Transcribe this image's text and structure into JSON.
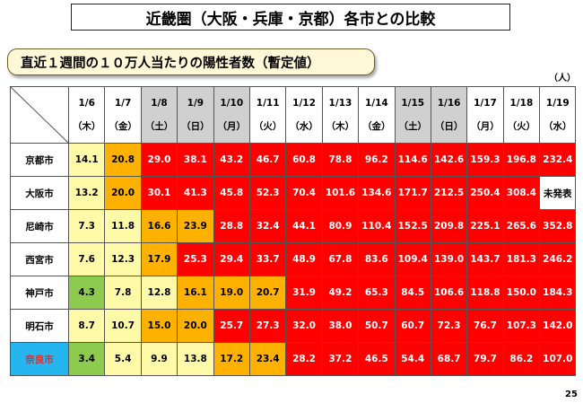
{
  "title": "近畿圏（大阪・兵庫・京都）各市との比較",
  "subtitle": "直近１週間の１０万人当たりの陽性者数（暫定値）",
  "unit": "（人）",
  "page_number": "25",
  "colors": {
    "green": "#8ccb4e",
    "yellow": "#fffaa8",
    "orange": "#ffb100",
    "red": "#fe0000",
    "nara_highlight": "#25b5ef",
    "weekend_header": "#d0d0d0"
  },
  "table": {
    "columns": [
      {
        "date": "1/6",
        "day": "（木）",
        "weekend": false
      },
      {
        "date": "1/7",
        "day": "（金）",
        "weekend": false
      },
      {
        "date": "1/8",
        "day": "（土）",
        "weekend": true
      },
      {
        "date": "1/9",
        "day": "（日）",
        "weekend": true
      },
      {
        "date": "1/10",
        "day": "（月）",
        "weekend": true
      },
      {
        "date": "1/11",
        "day": "（火）",
        "weekend": false
      },
      {
        "date": "1/12",
        "day": "（水）",
        "weekend": false
      },
      {
        "date": "1/13",
        "day": "（木）",
        "weekend": false
      },
      {
        "date": "1/14",
        "day": "（金）",
        "weekend": false
      },
      {
        "date": "1/15",
        "day": "（土）",
        "weekend": true
      },
      {
        "date": "1/16",
        "day": "（日）",
        "weekend": true
      },
      {
        "date": "1/17",
        "day": "（月）",
        "weekend": false
      },
      {
        "date": "1/18",
        "day": "（火）",
        "weekend": false
      },
      {
        "date": "1/19",
        "day": "（水）",
        "weekend": false
      }
    ],
    "rows": [
      {
        "city": "京都市",
        "highlight": false,
        "cells": [
          {
            "v": "14.1",
            "c": "yellow"
          },
          {
            "v": "20.8",
            "c": "orange"
          },
          {
            "v": "29.0",
            "c": "red"
          },
          {
            "v": "38.1",
            "c": "red"
          },
          {
            "v": "43.2",
            "c": "red"
          },
          {
            "v": "46.7",
            "c": "red"
          },
          {
            "v": "60.8",
            "c": "red"
          },
          {
            "v": "78.8",
            "c": "red"
          },
          {
            "v": "96.2",
            "c": "red"
          },
          {
            "v": "114.6",
            "c": "red"
          },
          {
            "v": "142.6",
            "c": "red"
          },
          {
            "v": "159.3",
            "c": "red"
          },
          {
            "v": "196.8",
            "c": "red"
          },
          {
            "v": "232.4",
            "c": "red"
          }
        ]
      },
      {
        "city": "大阪市",
        "highlight": false,
        "cells": [
          {
            "v": "13.2",
            "c": "yellow"
          },
          {
            "v": "20.0",
            "c": "orange"
          },
          {
            "v": "30.1",
            "c": "red"
          },
          {
            "v": "41.3",
            "c": "red"
          },
          {
            "v": "45.8",
            "c": "red"
          },
          {
            "v": "52.3",
            "c": "red"
          },
          {
            "v": "70.4",
            "c": "red"
          },
          {
            "v": "101.6",
            "c": "red"
          },
          {
            "v": "134.6",
            "c": "red"
          },
          {
            "v": "171.7",
            "c": "red"
          },
          {
            "v": "212.5",
            "c": "red"
          },
          {
            "v": "250.4",
            "c": "red"
          },
          {
            "v": "308.4",
            "c": "red"
          },
          {
            "v": "未発表",
            "c": "white"
          }
        ]
      },
      {
        "city": "尼崎市",
        "highlight": false,
        "cells": [
          {
            "v": "7.3",
            "c": "yellow"
          },
          {
            "v": "11.8",
            "c": "yellow"
          },
          {
            "v": "16.6",
            "c": "orange"
          },
          {
            "v": "23.9",
            "c": "orange"
          },
          {
            "v": "28.8",
            "c": "red"
          },
          {
            "v": "32.4",
            "c": "red"
          },
          {
            "v": "44.1",
            "c": "red"
          },
          {
            "v": "80.9",
            "c": "red"
          },
          {
            "v": "110.4",
            "c": "red"
          },
          {
            "v": "152.5",
            "c": "red"
          },
          {
            "v": "209.8",
            "c": "red"
          },
          {
            "v": "225.1",
            "c": "red"
          },
          {
            "v": "265.6",
            "c": "red"
          },
          {
            "v": "352.8",
            "c": "red"
          }
        ]
      },
      {
        "city": "西宮市",
        "highlight": false,
        "cells": [
          {
            "v": "7.6",
            "c": "yellow"
          },
          {
            "v": "12.3",
            "c": "yellow"
          },
          {
            "v": "17.9",
            "c": "orange"
          },
          {
            "v": "25.3",
            "c": "red"
          },
          {
            "v": "29.4",
            "c": "red"
          },
          {
            "v": "33.7",
            "c": "red"
          },
          {
            "v": "48.9",
            "c": "red"
          },
          {
            "v": "67.8",
            "c": "red"
          },
          {
            "v": "83.6",
            "c": "red"
          },
          {
            "v": "109.4",
            "c": "red"
          },
          {
            "v": "139.0",
            "c": "red"
          },
          {
            "v": "143.7",
            "c": "red"
          },
          {
            "v": "181.3",
            "c": "red"
          },
          {
            "v": "246.2",
            "c": "red"
          }
        ]
      },
      {
        "city": "神戸市",
        "highlight": false,
        "cells": [
          {
            "v": "4.3",
            "c": "green"
          },
          {
            "v": "7.8",
            "c": "yellow"
          },
          {
            "v": "12.8",
            "c": "yellow"
          },
          {
            "v": "16.1",
            "c": "orange"
          },
          {
            "v": "19.0",
            "c": "orange"
          },
          {
            "v": "20.7",
            "c": "orange"
          },
          {
            "v": "31.9",
            "c": "red"
          },
          {
            "v": "49.2",
            "c": "red"
          },
          {
            "v": "65.3",
            "c": "red"
          },
          {
            "v": "84.5",
            "c": "red"
          },
          {
            "v": "106.6",
            "c": "red"
          },
          {
            "v": "118.8",
            "c": "red"
          },
          {
            "v": "150.0",
            "c": "red"
          },
          {
            "v": "184.3",
            "c": "red"
          }
        ]
      },
      {
        "city": "明石市",
        "highlight": false,
        "cells": [
          {
            "v": "8.7",
            "c": "yellow"
          },
          {
            "v": "10.7",
            "c": "yellow"
          },
          {
            "v": "15.0",
            "c": "orange"
          },
          {
            "v": "20.0",
            "c": "orange"
          },
          {
            "v": "25.7",
            "c": "red"
          },
          {
            "v": "27.3",
            "c": "red"
          },
          {
            "v": "32.0",
            "c": "red"
          },
          {
            "v": "38.0",
            "c": "red"
          },
          {
            "v": "50.7",
            "c": "red"
          },
          {
            "v": "60.7",
            "c": "red"
          },
          {
            "v": "72.3",
            "c": "red"
          },
          {
            "v": "76.7",
            "c": "red"
          },
          {
            "v": "107.3",
            "c": "red"
          },
          {
            "v": "142.0",
            "c": "red"
          }
        ]
      },
      {
        "city": "奈良市",
        "highlight": true,
        "cells": [
          {
            "v": "3.4",
            "c": "green"
          },
          {
            "v": "5.4",
            "c": "yellow"
          },
          {
            "v": "9.9",
            "c": "yellow"
          },
          {
            "v": "13.8",
            "c": "yellow"
          },
          {
            "v": "17.2",
            "c": "orange"
          },
          {
            "v": "23.4",
            "c": "orange"
          },
          {
            "v": "28.2",
            "c": "red"
          },
          {
            "v": "37.2",
            "c": "red"
          },
          {
            "v": "46.5",
            "c": "red"
          },
          {
            "v": "54.4",
            "c": "red"
          },
          {
            "v": "68.7",
            "c": "red"
          },
          {
            "v": "79.7",
            "c": "red"
          },
          {
            "v": "86.2",
            "c": "red"
          },
          {
            "v": "107.0",
            "c": "red"
          }
        ]
      }
    ]
  }
}
